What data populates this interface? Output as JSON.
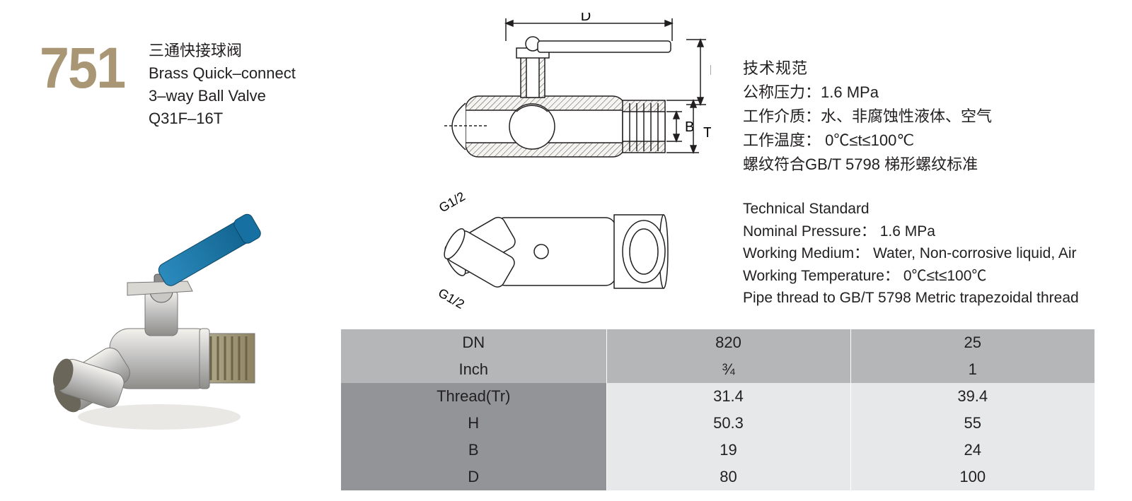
{
  "product": {
    "number": "751",
    "title_cn": "三通快接球阀",
    "title_en1": "Brass Quick–connect",
    "title_en2": "3–way Ball Valve",
    "model": "Q31F–16T"
  },
  "diagram": {
    "labels": {
      "D": "D",
      "H": "H",
      "B": "B",
      "Tr": "Tr",
      "G12a": "G1/2",
      "G12b": "G1/2"
    },
    "colors": {
      "outline": "#221f20",
      "hatch_bg": "#eceae7",
      "handle_fill": "#6aa6b8",
      "body_fill_light": "#e6e4e0",
      "body_fill_mid": "#bfbfbf",
      "body_fill_dark": "#9e9e9e",
      "thread": "#3a3a3a"
    }
  },
  "specs_cn": {
    "title": "技术规范",
    "line1_label": "公称压力：",
    "line1_value": "1.6 MPa",
    "line2_label": "工作介质：",
    "line2_value": "水、非腐蚀性液体、空气",
    "line3_label": "工作温度：",
    "line3_value": " 0℃≤t≤100℃",
    "line4": "螺纹符合GB/T 5798 梯形螺纹标准"
  },
  "specs_en": {
    "title": "Technical Standard",
    "line1_label": "Nominal Pressure：",
    "line1_value": " 1.6 MPa",
    "line2_label": "Working Medium：",
    "line2_value": " Water, Non-corrosive liquid, Air",
    "line3_label": "Working Temperature：",
    "line3_value": " 0℃≤t≤100℃",
    "line4": "Pipe thread to GB/T 5798 Metric trapezoidal thread"
  },
  "table": {
    "colors": {
      "header_bg": "#b5b6b8",
      "label_bg": "#929497",
      "cell_bg": "#e7e8ea",
      "border": "#ffffff",
      "text": "#221f20"
    },
    "rows": [
      {
        "label": "DN",
        "v1": "820",
        "v2": "25",
        "label_bg": "#b5b6b8",
        "cell_bg": "#b5b6b8"
      },
      {
        "label": "Inch",
        "v1": "¾",
        "v2": "1",
        "label_bg": "#b5b6b8",
        "cell_bg": "#b5b6b8"
      },
      {
        "label": "Thread(Tr)",
        "v1": "31.4",
        "v2": "39.4",
        "label_bg": "#929497",
        "cell_bg": "#e7e8ea"
      },
      {
        "label": "H",
        "v1": "50.3",
        "v2": "55",
        "label_bg": "#929497",
        "cell_bg": "#e7e8ea"
      },
      {
        "label": "B",
        "v1": "19",
        "v2": "24",
        "label_bg": "#929497",
        "cell_bg": "#e7e8ea"
      },
      {
        "label": "D",
        "v1": "80",
        "v2": "100",
        "label_bg": "#929497",
        "cell_bg": "#e7e8ea"
      }
    ]
  }
}
